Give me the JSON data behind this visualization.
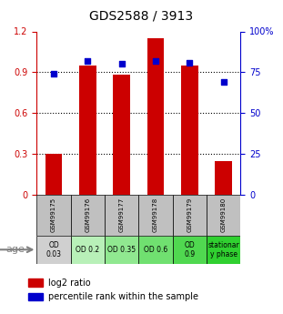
{
  "title": "GDS2588 / 3913",
  "samples": [
    "GSM99175",
    "GSM99176",
    "GSM99177",
    "GSM99178",
    "GSM99179",
    "GSM99180"
  ],
  "log2_ratio": [
    0.3,
    0.95,
    0.88,
    1.15,
    0.95,
    0.25
  ],
  "percentile_rank": [
    0.74,
    0.82,
    0.8,
    0.82,
    0.81,
    0.69
  ],
  "bar_color": "#cc0000",
  "dot_color": "#0000cc",
  "ylim_left": [
    0,
    1.2
  ],
  "ylim_right": [
    0,
    1.0
  ],
  "yticks_left": [
    0,
    0.3,
    0.6,
    0.9,
    1.2
  ],
  "ytick_labels_left": [
    "0",
    "0.3",
    "0.6",
    "0.9",
    "1.2"
  ],
  "yticks_right": [
    0,
    0.25,
    0.5,
    0.75,
    1.0
  ],
  "ytick_labels_right": [
    "0",
    "25",
    "50",
    "75",
    "100%"
  ],
  "age_labels": [
    "OD\n0.03",
    "OD 0.2",
    "OD 0.35",
    "OD 0.6",
    "OD\n0.9",
    "stationar\ny phase"
  ],
  "age_colors": [
    "#d0d0d0",
    "#b8f0b8",
    "#90e890",
    "#70e070",
    "#50d850",
    "#30d030"
  ],
  "sample_row_color": "#c0c0c0",
  "legend_bar_label": "log2 ratio",
  "legend_dot_label": "percentile rank within the sample",
  "age_label": "age"
}
